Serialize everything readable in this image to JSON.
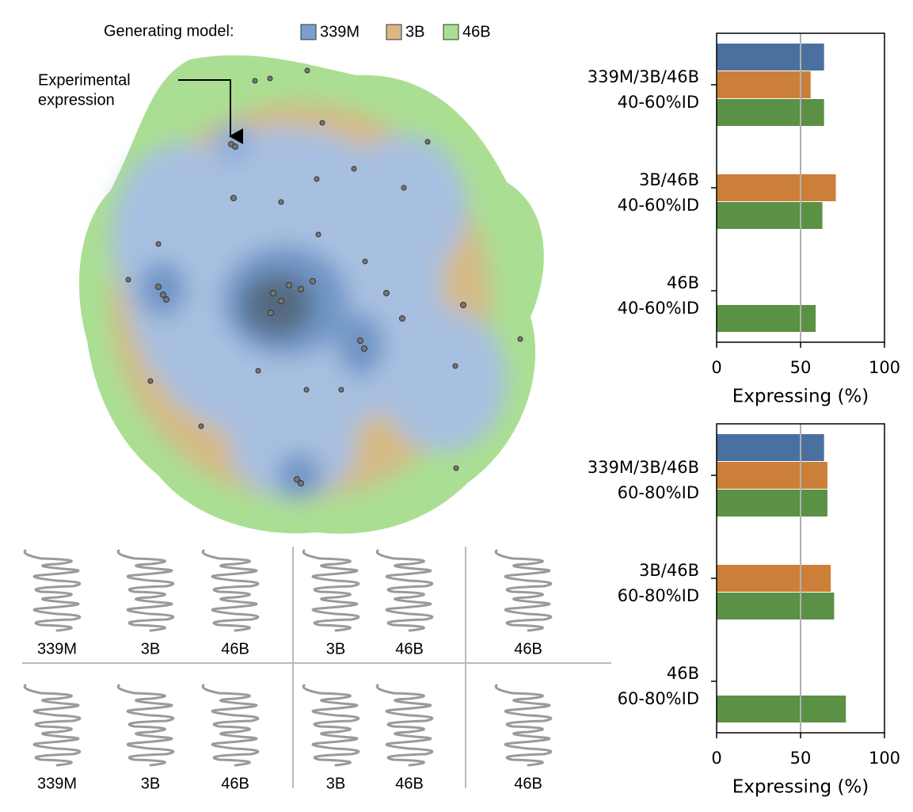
{
  "density_map": {
    "legend_title": "Generating model:",
    "legend": [
      {
        "name": "339M",
        "color": "#7ba0cf"
      },
      {
        "name": "3B",
        "color": "#d9b683"
      },
      {
        "name": "46B",
        "color": "#aadf93"
      }
    ],
    "annotation": [
      "Experimental",
      "expression"
    ]
  },
  "structures": {
    "rows": [
      [
        "339M",
        "3B",
        "46B",
        "3B",
        "46B",
        "46B"
      ],
      [
        "339M",
        "3B",
        "46B",
        "3B",
        "46B",
        "46B"
      ]
    ]
  },
  "chart_data": [
    {
      "type": "bar",
      "orientation": "horizontal",
      "categories": [
        [
          "339M/3B/46B",
          "40-60%ID"
        ],
        [
          "3B/46B",
          "40-60%ID"
        ],
        [
          "46B",
          "40-60%ID"
        ]
      ],
      "series": [
        {
          "name": "339M",
          "color": "#4a70a0",
          "values": [
            64,
            null,
            null
          ]
        },
        {
          "name": "3B",
          "color": "#cc7f38",
          "values": [
            56,
            71,
            null
          ]
        },
        {
          "name": "46B",
          "color": "#5b9145",
          "values": [
            64,
            63,
            59
          ]
        }
      ],
      "xlabel": "Expressing (%)",
      "xlim": [
        0,
        100
      ],
      "xticks": [
        0,
        50,
        100
      ],
      "vline": 50,
      "vline_color": "#b0b0b0"
    },
    {
      "type": "bar",
      "orientation": "horizontal",
      "categories": [
        [
          "339M/3B/46B",
          "60-80%ID"
        ],
        [
          "3B/46B",
          "60-80%ID"
        ],
        [
          "46B",
          "60-80%ID"
        ]
      ],
      "series": [
        {
          "name": "339M",
          "color": "#4a70a0",
          "values": [
            64,
            null,
            null
          ]
        },
        {
          "name": "3B",
          "color": "#cc7f38",
          "values": [
            66,
            68,
            null
          ]
        },
        {
          "name": "46B",
          "color": "#5b9145",
          "values": [
            66,
            70,
            77
          ]
        }
      ],
      "xlabel": "Expressing (%)",
      "xlim": [
        0,
        100
      ],
      "xticks": [
        0,
        50,
        100
      ],
      "vline": 50,
      "vline_color": "#b0b0b0"
    }
  ]
}
